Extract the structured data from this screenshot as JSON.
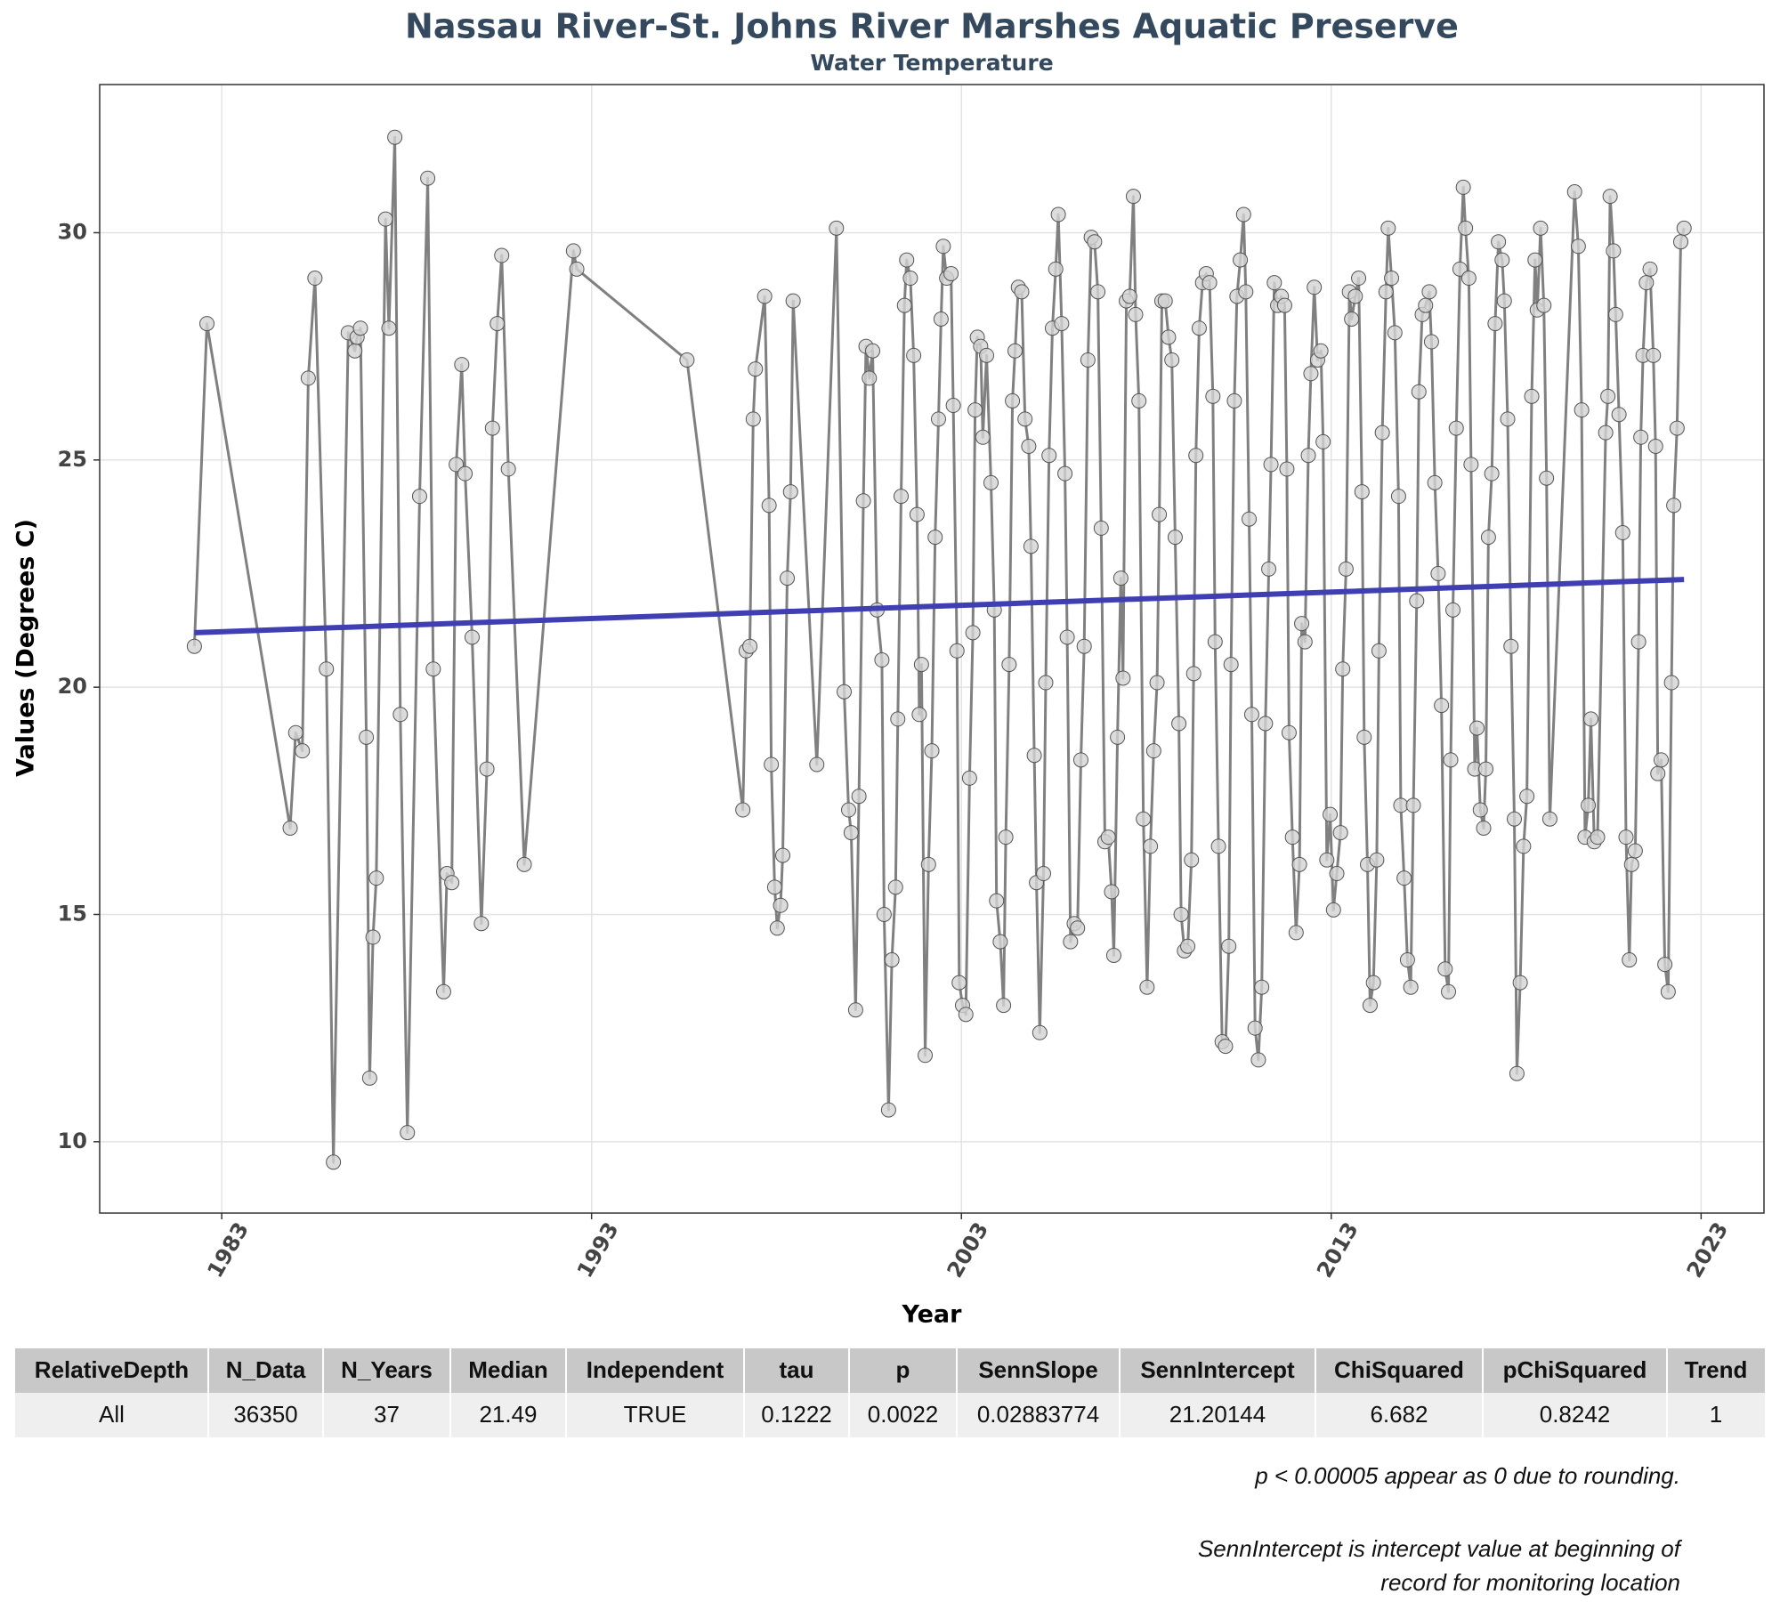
{
  "chart_data": {
    "type": "line",
    "title": "Nassau River-St. Johns River Marshes Aquatic Preserve",
    "subtitle": "Water Temperature",
    "x_label": "Year",
    "y_label": "Values (Degrees C)",
    "xlim": [
      1979.7,
      2024.7
    ],
    "ylim": [
      8.43,
      33.26
    ],
    "xticks": [
      1983,
      1993,
      2003,
      2013,
      2023
    ],
    "yticks": [
      10,
      15,
      20,
      25,
      30
    ],
    "grid": true,
    "series": [
      {
        "color": "#808080",
        "markers": true,
        "x": [
          1982.26,
          1982.6,
          1984.85,
          1985.0,
          1985.18,
          1985.34,
          1985.52,
          1985.83,
          1986.02,
          1986.42,
          1986.6,
          1986.66,
          1986.75,
          1986.91,
          1987.0,
          1987.09,
          1987.18,
          1987.43,
          1987.52,
          1987.68,
          1987.83,
          1988.02,
          1988.35,
          1988.57,
          1988.72,
          1989.0,
          1989.09,
          1989.22,
          1989.34,
          1989.49,
          1989.58,
          1989.77,
          1990.02,
          1990.17,
          1990.32,
          1990.45,
          1990.57,
          1990.75,
          1991.18,
          1992.51,
          1992.6,
          1995.58,
          1997.09,
          1997.18,
          1997.28,
          1997.37,
          1997.43,
          1997.68,
          1997.8,
          1997.86,
          1997.95,
          1998.02,
          1998.11,
          1998.17,
          1998.29,
          1998.38,
          1998.45,
          1999.09,
          1999.62,
          1999.83,
          1999.95,
          2000.02,
          2000.14,
          2000.23,
          2000.35,
          2000.42,
          2000.51,
          2000.6,
          2000.72,
          2000.85,
          2000.91,
          2001.03,
          2001.12,
          2001.22,
          2001.28,
          2001.37,
          2001.46,
          2001.52,
          2001.62,
          2001.71,
          2001.8,
          2001.86,
          2001.92,
          2002.02,
          2002.11,
          2002.2,
          2002.29,
          2002.38,
          2002.45,
          2002.51,
          2002.6,
          2002.72,
          2002.78,
          2002.88,
          2002.94,
          2003.03,
          2003.12,
          2003.22,
          2003.31,
          2003.37,
          2003.43,
          2003.52,
          2003.58,
          2003.68,
          2003.8,
          2003.89,
          2003.95,
          2004.05,
          2004.14,
          2004.2,
          2004.29,
          2004.38,
          2004.45,
          2004.54,
          2004.63,
          2004.72,
          2004.82,
          2004.88,
          2004.97,
          2005.03,
          2005.12,
          2005.22,
          2005.28,
          2005.37,
          2005.46,
          2005.55,
          2005.62,
          2005.71,
          2005.8,
          2005.86,
          2005.95,
          2006.05,
          2006.14,
          2006.23,
          2006.32,
          2006.42,
          2006.51,
          2006.6,
          2006.69,
          2006.78,
          2006.88,
          2006.97,
          2007.06,
          2007.12,
          2007.22,
          2007.31,
          2007.37,
          2007.46,
          2007.55,
          2007.65,
          2007.71,
          2007.8,
          2007.92,
          2008.02,
          2008.11,
          2008.2,
          2008.29,
          2008.35,
          2008.42,
          2008.51,
          2008.6,
          2008.69,
          2008.78,
          2008.88,
          2008.94,
          2009.03,
          2009.12,
          2009.22,
          2009.28,
          2009.34,
          2009.43,
          2009.52,
          2009.62,
          2009.71,
          2009.8,
          2009.86,
          2009.95,
          2010.05,
          2010.14,
          2010.23,
          2010.29,
          2010.38,
          2010.45,
          2010.54,
          2010.63,
          2010.69,
          2010.78,
          2010.85,
          2010.94,
          2011.03,
          2011.12,
          2011.22,
          2011.31,
          2011.37,
          2011.46,
          2011.55,
          2011.65,
          2011.74,
          2011.8,
          2011.86,
          2011.95,
          2012.05,
          2012.14,
          2012.2,
          2012.29,
          2012.38,
          2012.45,
          2012.54,
          2012.63,
          2012.72,
          2012.78,
          2012.88,
          2012.97,
          2013.06,
          2013.15,
          2013.25,
          2013.31,
          2013.4,
          2013.49,
          2013.55,
          2013.65,
          2013.74,
          2013.83,
          2013.89,
          2013.98,
          2014.05,
          2014.14,
          2014.23,
          2014.29,
          2014.38,
          2014.48,
          2014.54,
          2014.63,
          2014.72,
          2014.82,
          2014.88,
          2014.97,
          2015.06,
          2015.15,
          2015.22,
          2015.31,
          2015.37,
          2015.46,
          2015.55,
          2015.65,
          2015.71,
          2015.8,
          2015.89,
          2015.98,
          2016.08,
          2016.17,
          2016.23,
          2016.29,
          2016.38,
          2016.48,
          2016.57,
          2016.63,
          2016.72,
          2016.78,
          2016.88,
          2016.94,
          2017.03,
          2017.12,
          2017.18,
          2017.25,
          2017.34,
          2017.43,
          2017.52,
          2017.62,
          2017.68,
          2017.77,
          2017.86,
          2017.95,
          2018.02,
          2018.11,
          2018.2,
          2018.29,
          2018.42,
          2018.51,
          2018.57,
          2018.66,
          2018.75,
          2018.82,
          2018.91,
          2019.58,
          2019.68,
          2019.77,
          2019.86,
          2019.95,
          2020.02,
          2020.11,
          2020.2,
          2020.42,
          2020.48,
          2020.54,
          2020.63,
          2020.69,
          2020.78,
          2020.88,
          2020.97,
          2021.06,
          2021.12,
          2021.22,
          2021.31,
          2021.37,
          2021.43,
          2021.52,
          2021.62,
          2021.71,
          2021.77,
          2021.83,
          2021.92,
          2022.02,
          2022.11,
          2022.2,
          2022.26,
          2022.35,
          2022.45,
          2022.54
        ],
        "values": [
          20.9,
          28.0,
          16.9,
          19.0,
          18.6,
          26.8,
          29.0,
          20.4,
          9.55,
          27.8,
          27.4,
          27.7,
          27.9,
          18.9,
          11.4,
          14.5,
          15.8,
          30.3,
          27.9,
          32.1,
          19.4,
          10.2,
          24.2,
          31.2,
          20.4,
          13.3,
          15.9,
          15.7,
          24.9,
          27.1,
          24.7,
          21.1,
          14.8,
          18.2,
          25.7,
          28.0,
          29.5,
          24.8,
          16.1,
          29.6,
          29.2,
          27.2,
          17.3,
          20.8,
          20.9,
          25.9,
          27.0,
          28.6,
          24.0,
          18.3,
          15.6,
          14.7,
          15.2,
          16.3,
          22.4,
          24.3,
          28.5,
          18.3,
          30.1,
          19.9,
          17.3,
          16.8,
          12.9,
          17.6,
          24.1,
          27.5,
          26.8,
          27.4,
          21.7,
          20.6,
          15.0,
          10.7,
          14.0,
          15.6,
          19.3,
          24.2,
          28.4,
          29.4,
          29.0,
          27.3,
          23.8,
          19.4,
          20.5,
          11.9,
          16.1,
          18.6,
          23.3,
          25.9,
          28.1,
          29.7,
          29.0,
          29.1,
          26.2,
          20.8,
          13.5,
          13.0,
          12.8,
          18.0,
          21.2,
          26.1,
          27.7,
          27.5,
          25.5,
          27.3,
          24.5,
          21.7,
          15.3,
          14.4,
          13.0,
          16.7,
          20.5,
          26.3,
          27.4,
          28.8,
          28.7,
          25.9,
          25.3,
          23.1,
          18.5,
          15.7,
          12.4,
          15.9,
          20.1,
          25.1,
          27.9,
          29.2,
          30.4,
          28.0,
          24.7,
          21.1,
          14.4,
          14.8,
          14.7,
          18.4,
          20.9,
          27.2,
          29.9,
          29.8,
          28.7,
          23.5,
          16.6,
          16.7,
          15.5,
          14.1,
          18.9,
          22.4,
          20.2,
          28.5,
          28.6,
          30.8,
          28.2,
          26.3,
          17.1,
          13.4,
          16.5,
          18.6,
          20.1,
          23.8,
          28.5,
          28.5,
          27.7,
          27.2,
          23.3,
          19.2,
          15.0,
          14.2,
          14.3,
          16.2,
          20.3,
          25.1,
          27.9,
          28.9,
          29.1,
          28.9,
          26.4,
          21.0,
          16.5,
          12.2,
          12.1,
          14.3,
          20.5,
          26.3,
          28.6,
          29.4,
          30.4,
          28.7,
          23.7,
          19.4,
          12.5,
          11.8,
          13.4,
          19.2,
          22.6,
          24.9,
          28.9,
          28.4,
          28.6,
          28.4,
          24.8,
          19.0,
          16.7,
          14.6,
          16.1,
          21.4,
          21.0,
          25.1,
          26.9,
          28.8,
          27.2,
          27.4,
          25.4,
          16.2,
          17.2,
          15.1,
          15.9,
          16.8,
          20.4,
          22.6,
          28.7,
          28.1,
          28.6,
          29.0,
          24.3,
          18.9,
          16.1,
          13.0,
          13.5,
          16.2,
          20.8,
          25.6,
          28.7,
          30.1,
          29.0,
          27.8,
          24.2,
          17.4,
          15.8,
          14.0,
          13.4,
          17.4,
          21.9,
          26.5,
          28.2,
          28.4,
          28.7,
          27.6,
          24.5,
          22.5,
          19.6,
          13.8,
          13.3,
          18.4,
          21.7,
          25.7,
          29.2,
          31.0,
          30.1,
          29.0,
          24.9,
          18.2,
          19.1,
          17.3,
          16.9,
          18.2,
          23.3,
          24.7,
          28.0,
          29.8,
          29.4,
          28.5,
          25.9,
          20.9,
          17.1,
          11.5,
          13.5,
          16.5,
          17.6,
          26.4,
          29.4,
          28.3,
          30.1,
          28.4,
          24.6,
          17.1,
          30.9,
          29.7,
          26.1,
          16.7,
          17.4,
          19.3,
          16.6,
          16.7,
          25.6,
          26.4,
          30.8,
          29.6,
          28.2,
          26.0,
          23.4,
          16.7,
          14.0,
          16.1,
          16.4,
          21.0,
          25.5,
          27.3,
          28.9,
          29.2,
          27.3,
          25.3,
          18.1,
          18.4,
          13.9,
          13.3,
          20.1,
          24.0,
          25.7,
          29.8,
          30.1
        ]
      },
      {
        "color": "#3f3fb3",
        "markers": false,
        "x": [
          1982.26,
          2022.54
        ],
        "values": [
          21.2,
          22.37
        ]
      }
    ],
    "table": {
      "columns": [
        "RelativeDepth",
        "N_Data",
        "N_Years",
        "Median",
        "Independent",
        "tau",
        "p",
        "SennSlope",
        "SennIntercept",
        "ChiSquared",
        "pChiSquared",
        "Trend"
      ],
      "rows": [
        [
          "All",
          "36350",
          "37",
          "21.49",
          "TRUE",
          "0.1222",
          "0.0022",
          "0.02883774",
          "21.20144",
          "6.682",
          "0.8242",
          "1"
        ]
      ]
    },
    "notes": [
      "p < 0.00005 appear as 0 due to rounding.",
      "SennIntercept is intercept value at beginning of",
      "record for monitoring location"
    ]
  }
}
